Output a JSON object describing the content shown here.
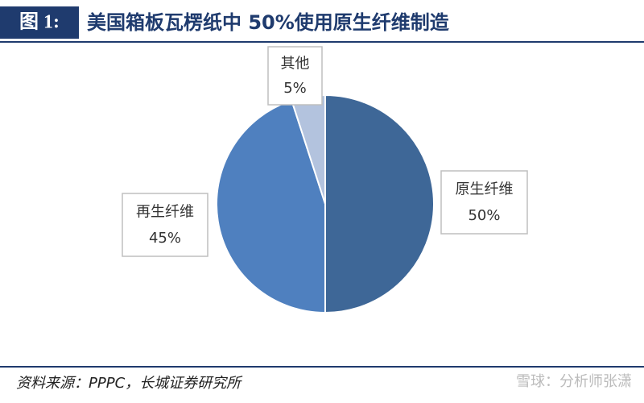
{
  "chart_data": {
    "type": "pie",
    "figure_label": "图 1:",
    "title": "美国箱板瓦楞纸中 50%使用原生纤维制造",
    "categories": [
      "原生纤维",
      "再生纤维",
      "其他"
    ],
    "values": [
      50,
      45,
      5
    ],
    "value_labels": [
      "50%",
      "45%",
      "5%"
    ],
    "colors": [
      "#3e6797",
      "#4f80bf",
      "#b3c3de"
    ],
    "source": "资料来源：PPPC，长城证券研究所",
    "watermark": "雪球：分析师张潇"
  }
}
